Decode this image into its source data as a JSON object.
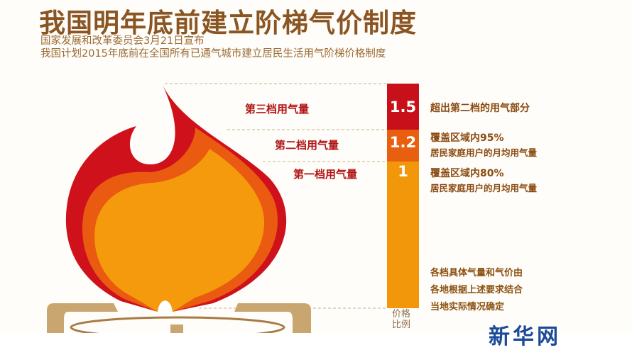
{
  "title": "我国明年底前建立阶梯气价制度",
  "subtitle_lines": [
    "国家发展和改革委员会3月21日宣布",
    "我国计划2015年底前在全国所有已通气城市建立居民生活用气阶梯价格制度"
  ],
  "tiers": [
    {
      "label": "第三档用气量",
      "ratio": "1.5",
      "desc": "超出第二档的用气部分",
      "desc2": "",
      "color": "#c8101a"
    },
    {
      "label": "第二档用气量",
      "ratio": "1.2",
      "desc": "覆盖区域内95%",
      "desc2": "居民家庭用户的月均用气量",
      "color": "#e8600f"
    },
    {
      "label": "第一档用气量",
      "ratio": "1",
      "desc": "覆盖区域内80%",
      "desc2": "居民家庭用户的月均用气量",
      "color": "#f2970a"
    }
  ],
  "note_lines": [
    "各档具体气量和气价由",
    "各地根据上述要求结合",
    "当地实际情况确定"
  ],
  "axis_label": "价格比例",
  "logo": "新华网"
}
